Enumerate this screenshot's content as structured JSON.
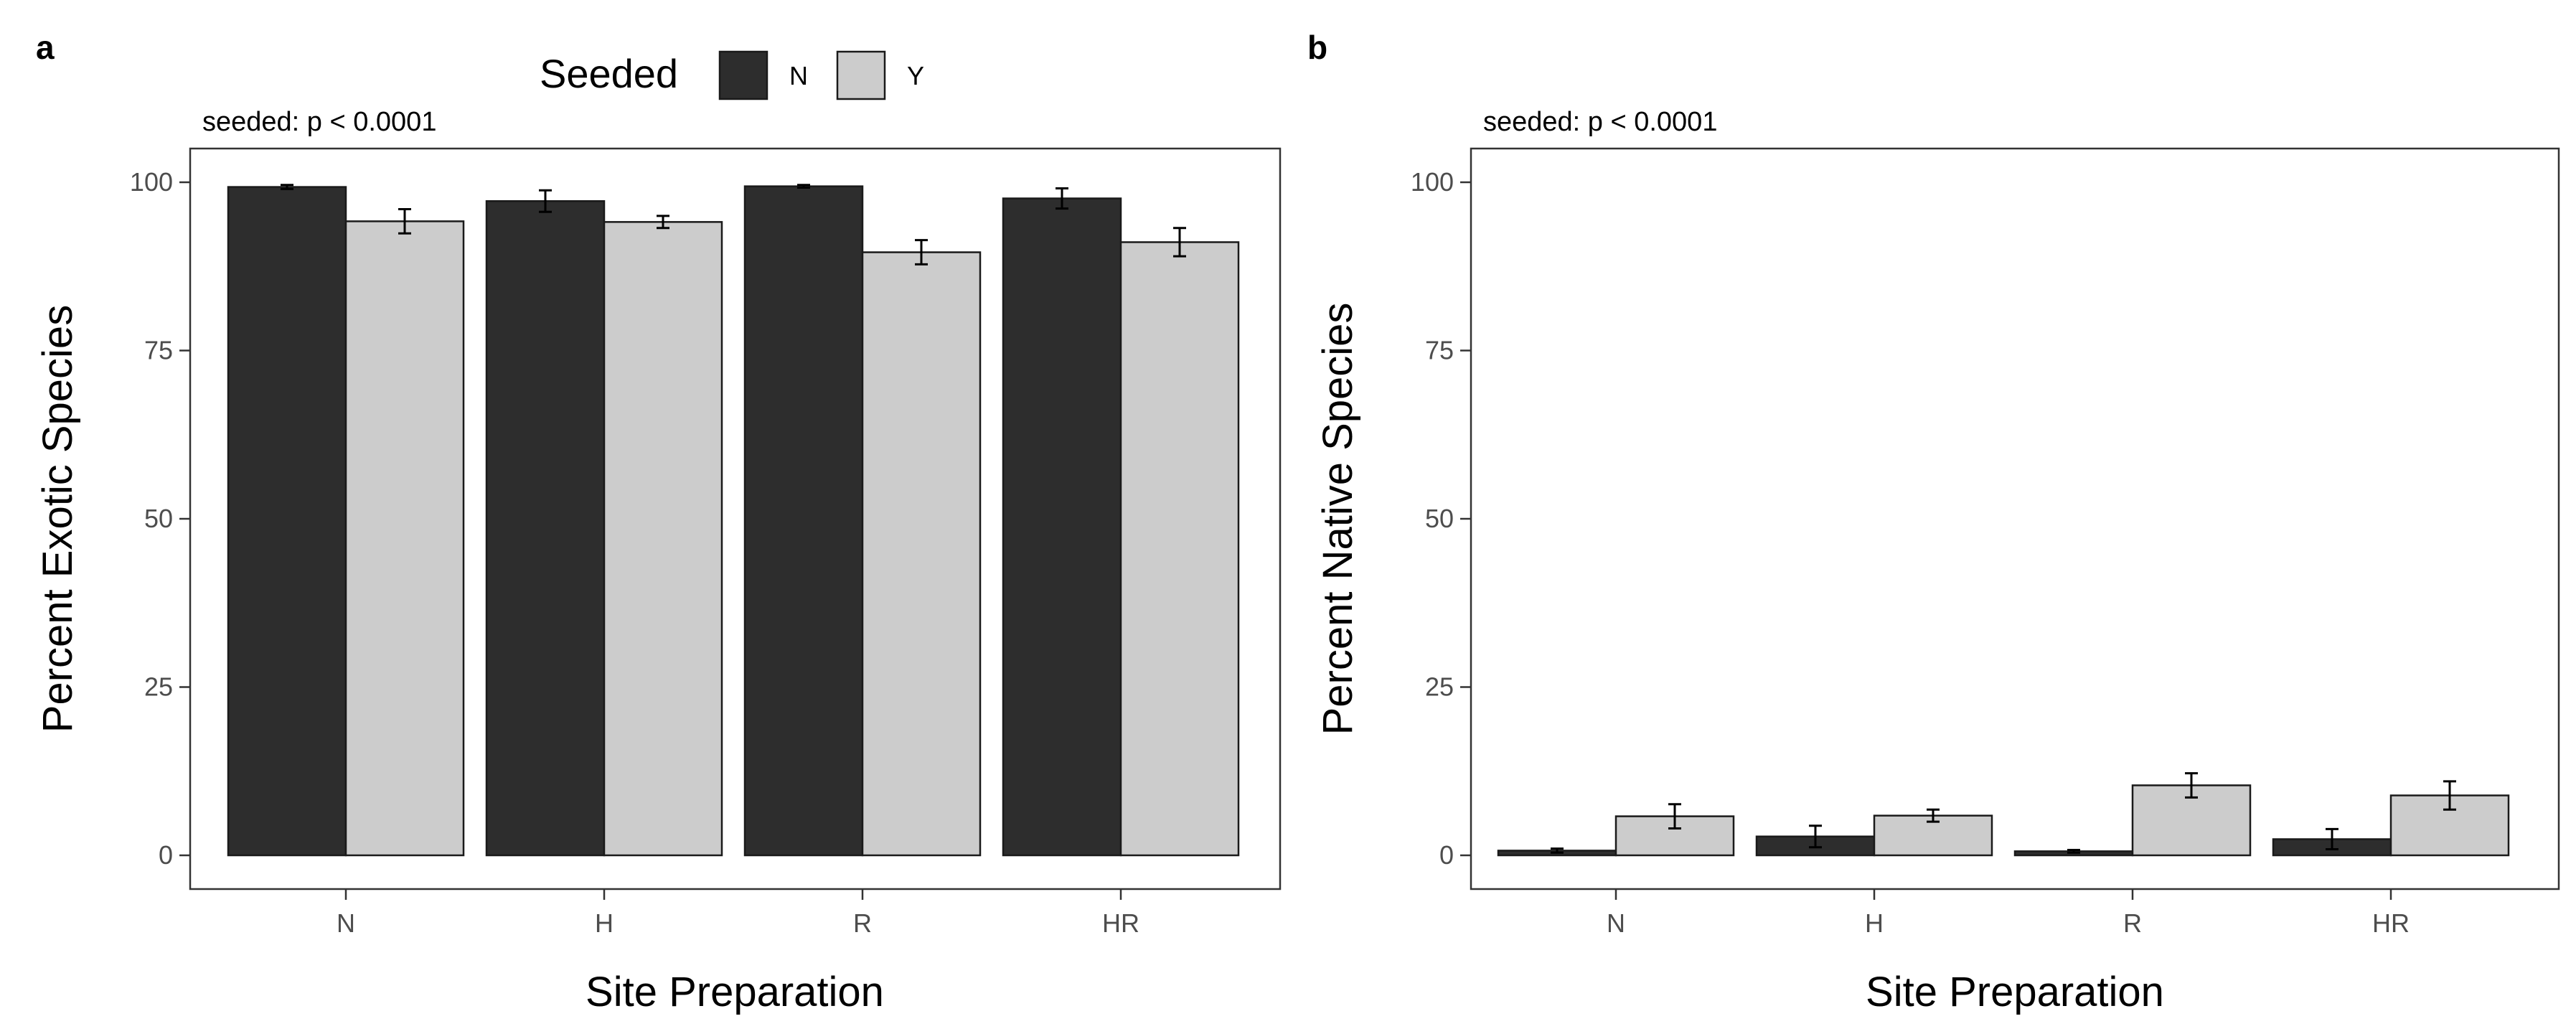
{
  "legend": {
    "title": "Seeded",
    "items": [
      {
        "label": "N",
        "color": "#2d2d2d"
      },
      {
        "label": "Y",
        "color": "#cccccc"
      }
    ]
  },
  "chart_data": [
    {
      "type": "bar",
      "panel_label": "a",
      "annotation": "seeded: p < 0.0001",
      "xlabel": "Site Preparation",
      "ylabel": "Percent Exotic Species",
      "categories": [
        "N",
        "H",
        "R",
        "HR"
      ],
      "ylim": [
        0,
        100
      ],
      "yticks": [
        0,
        25,
        50,
        75,
        100
      ],
      "series": [
        {
          "name": "N",
          "values": [
            99.3,
            97.2,
            99.4,
            97.6
          ],
          "errors": [
            0.3,
            1.6,
            0.2,
            1.5
          ]
        },
        {
          "name": "Y",
          "values": [
            94.2,
            94.1,
            89.6,
            91.1
          ],
          "errors": [
            1.8,
            0.9,
            1.8,
            2.1
          ]
        }
      ]
    },
    {
      "type": "bar",
      "panel_label": "b",
      "annotation": "seeded: p < 0.0001",
      "xlabel": "Site Preparation",
      "ylabel": "Percent Native Species",
      "categories": [
        "N",
        "H",
        "R",
        "HR"
      ],
      "ylim": [
        0,
        100
      ],
      "yticks": [
        0,
        25,
        50,
        75,
        100
      ],
      "series": [
        {
          "name": "N",
          "values": [
            0.7,
            2.8,
            0.6,
            2.4
          ],
          "errors": [
            0.3,
            1.6,
            0.2,
            1.5
          ]
        },
        {
          "name": "Y",
          "values": [
            5.8,
            5.9,
            10.4,
            8.9
          ],
          "errors": [
            1.8,
            0.9,
            1.8,
            2.1
          ]
        }
      ]
    }
  ]
}
